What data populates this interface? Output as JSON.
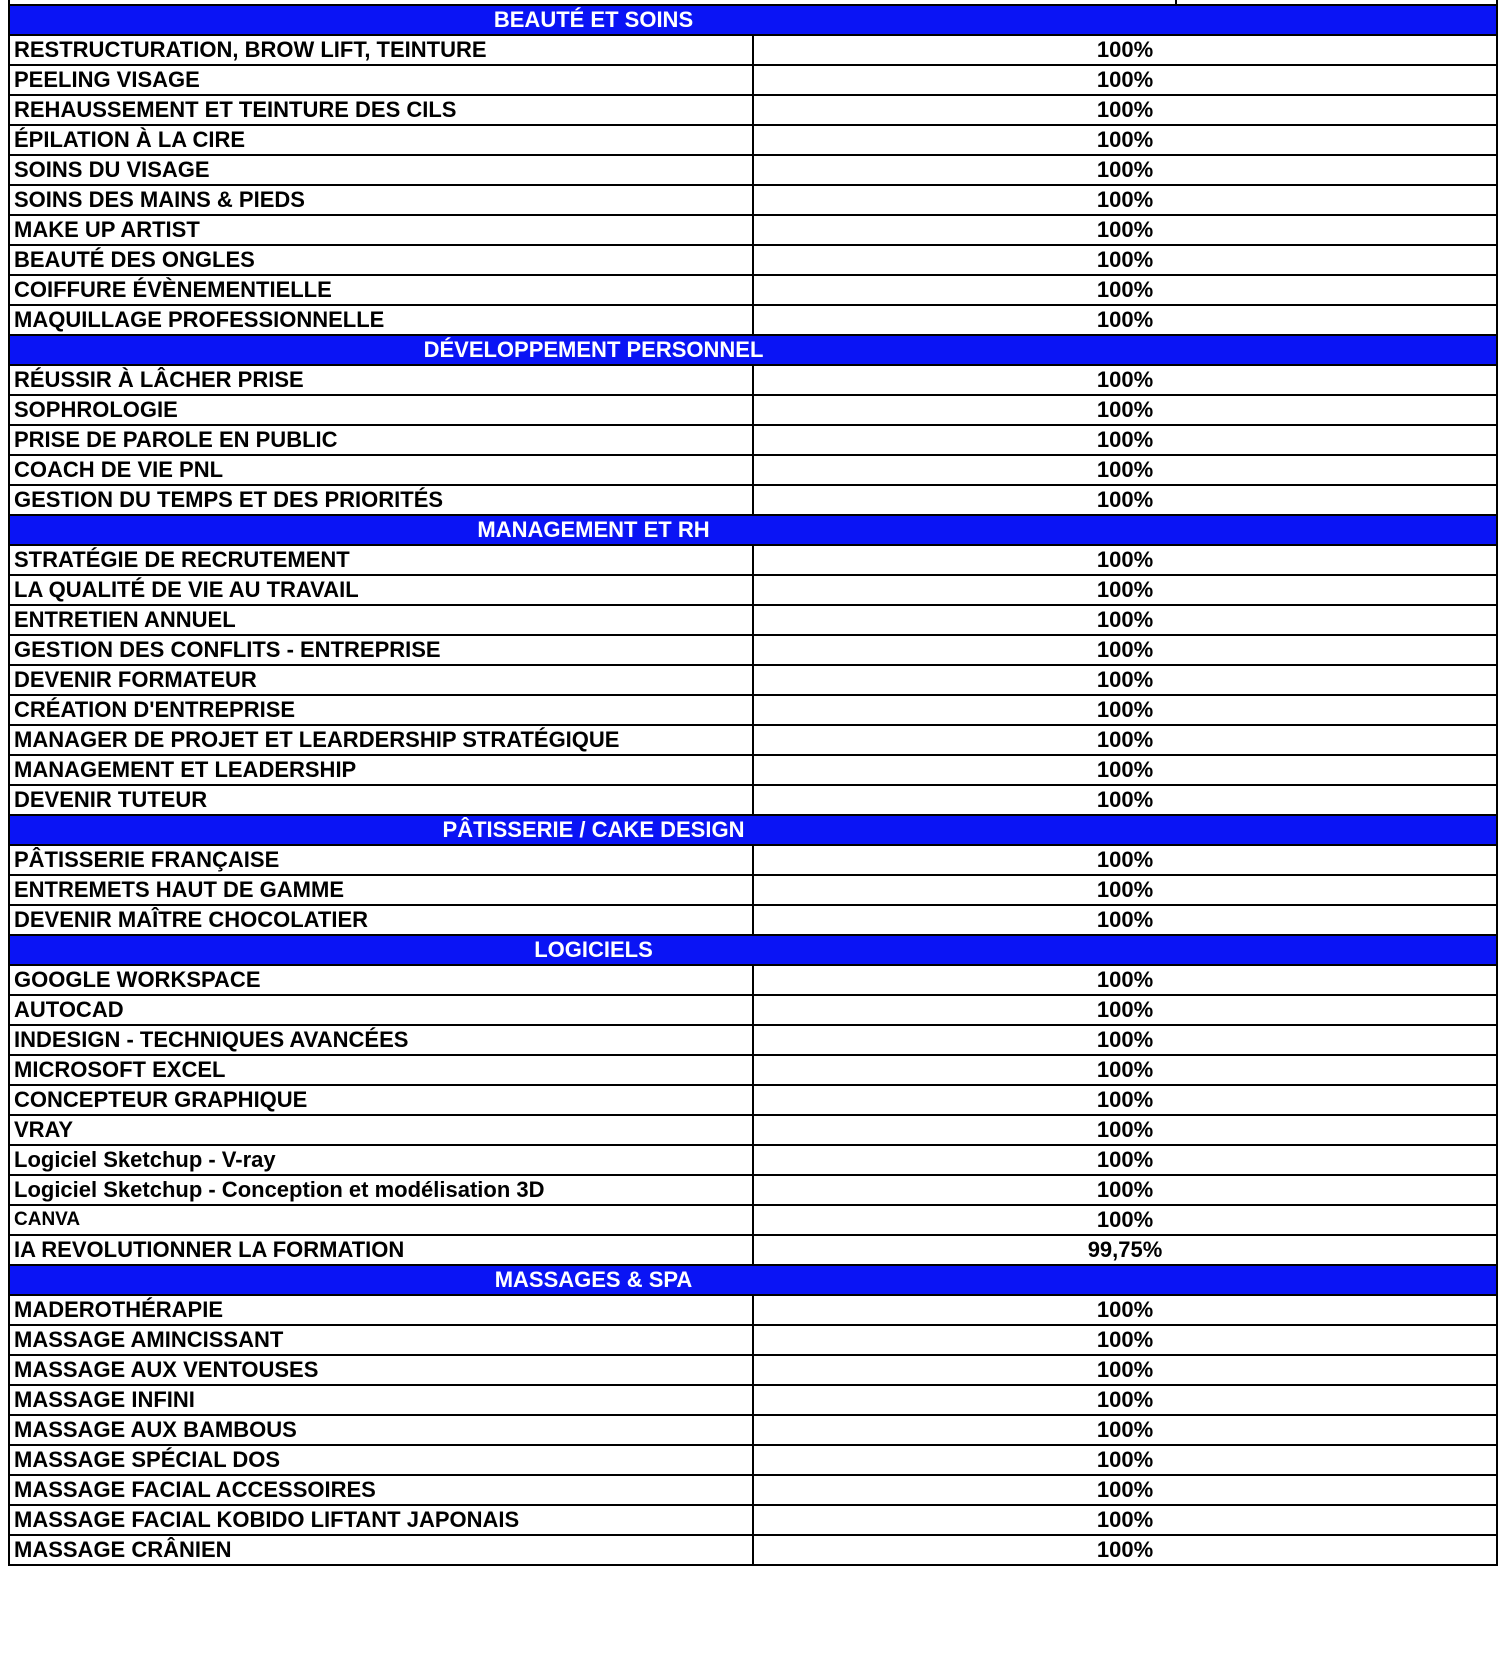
{
  "sections": [
    {
      "title": "BEAUTÉ ET SOINS",
      "items": [
        {
          "name": "RESTRUCTURATION, BROW LIFT, TEINTURE",
          "value": "100%"
        },
        {
          "name": "PEELING VISAGE",
          "value": "100%"
        },
        {
          "name": "REHAUSSEMENT ET TEINTURE DES CILS",
          "value": "100%"
        },
        {
          "name": "ÉPILATION À LA CIRE",
          "value": "100%"
        },
        {
          "name": "SOINS DU VISAGE",
          "value": "100%"
        },
        {
          "name": "SOINS DES MAINS & PIEDS",
          "value": "100%"
        },
        {
          "name": "MAKE UP ARTIST",
          "value": "100%"
        },
        {
          "name": "BEAUTÉ DES ONGLES",
          "value": "100%"
        },
        {
          "name": "COIFFURE ÉVÈNEMENTIELLE",
          "value": "100%"
        },
        {
          "name": "MAQUILLAGE PROFESSIONNELLE",
          "value": "100%"
        }
      ]
    },
    {
      "title": "DÉVELOPPEMENT PERSONNEL",
      "items": [
        {
          "name": "RÉUSSIR À LÂCHER PRISE",
          "value": "100%"
        },
        {
          "name": "SOPHROLOGIE",
          "value": "100%"
        },
        {
          "name": "PRISE DE PAROLE EN PUBLIC",
          "value": "100%"
        },
        {
          "name": "COACH DE VIE PNL",
          "value": "100%"
        },
        {
          "name": "GESTION DU TEMPS ET DES PRIORITÉS",
          "value": "100%"
        }
      ]
    },
    {
      "title": "MANAGEMENT ET RH",
      "items": [
        {
          "name": "STRATÉGIE DE RECRUTEMENT",
          "value": "100%"
        },
        {
          "name": "LA QUALITÉ DE VIE AU TRAVAIL",
          "value": "100%"
        },
        {
          "name": "ENTRETIEN ANNUEL",
          "value": "100%"
        },
        {
          "name": "GESTION DES CONFLITS - ENTREPRISE",
          "value": "100%"
        },
        {
          "name": "DEVENIR FORMATEUR",
          "value": "100%"
        },
        {
          "name": "CRÉATION D'ENTREPRISE",
          "value": "100%"
        },
        {
          "name": "MANAGER DE PROJET ET LEARDERSHIP STRATÉGIQUE",
          "value": "100%"
        },
        {
          "name": "MANAGEMENT ET LEADERSHIP",
          "value": "100%"
        },
        {
          "name": "DEVENIR TUTEUR",
          "value": "100%"
        }
      ]
    },
    {
      "title": "PÂTISSERIE / CAKE DESIGN",
      "items": [
        {
          "name": "PÂTISSERIE FRANÇAISE",
          "value": "100%"
        },
        {
          "name": "ENTREMETS HAUT DE GAMME",
          "value": "100%"
        },
        {
          "name": "DEVENIR MAÎTRE CHOCOLATIER",
          "value": "100%"
        }
      ]
    },
    {
      "title": "LOGICIELS",
      "items": [
        {
          "name": "GOOGLE WORKSPACE",
          "value": "100%"
        },
        {
          "name": "AUTOCAD",
          "value": "100%"
        },
        {
          "name": "INDESIGN - TECHNIQUES AVANCÉES",
          "value": "100%"
        },
        {
          "name": "MICROSOFT EXCEL",
          "value": "100%"
        },
        {
          "name": "CONCEPTEUR GRAPHIQUE",
          "value": "100%"
        },
        {
          "name": "VRAY",
          "value": "100%"
        },
        {
          "name": "Logiciel Sketchup - V-ray",
          "value": "100%"
        },
        {
          "name": "Logiciel Sketchup - Conception et modélisation 3D",
          "value": "100%"
        },
        {
          "name": "CANVA",
          "value": "100%"
        },
        {
          "name": "IA REVOLUTIONNER LA FORMATION",
          "value": "99,75%"
        }
      ]
    },
    {
      "title": "MASSAGES & SPA",
      "items": [
        {
          "name": "MADEROTHÉRAPIE",
          "value": "100%"
        },
        {
          "name": "MASSAGE AMINCISSANT",
          "value": "100%"
        },
        {
          "name": "MASSAGE AUX VENTOUSES",
          "value": "100%"
        },
        {
          "name": "MASSAGE INFINI",
          "value": "100%"
        },
        {
          "name": "MASSAGE AUX BAMBOUS",
          "value": "100%"
        },
        {
          "name": "MASSAGE SPÉCIAL DOS",
          "value": "100%"
        },
        {
          "name": "MASSAGE FACIAL ACCESSOIRES",
          "value": "100%"
        },
        {
          "name": "MASSAGE FACIAL KOBIDO LIFTANT JAPONAIS",
          "value": "100%"
        },
        {
          "name": "MASSAGE CRÂNIEN",
          "value": "100%"
        }
      ]
    }
  ],
  "colors": {
    "section_header_bg": "#0a14f5",
    "section_header_text": "#ffffff",
    "border": "#000000"
  }
}
